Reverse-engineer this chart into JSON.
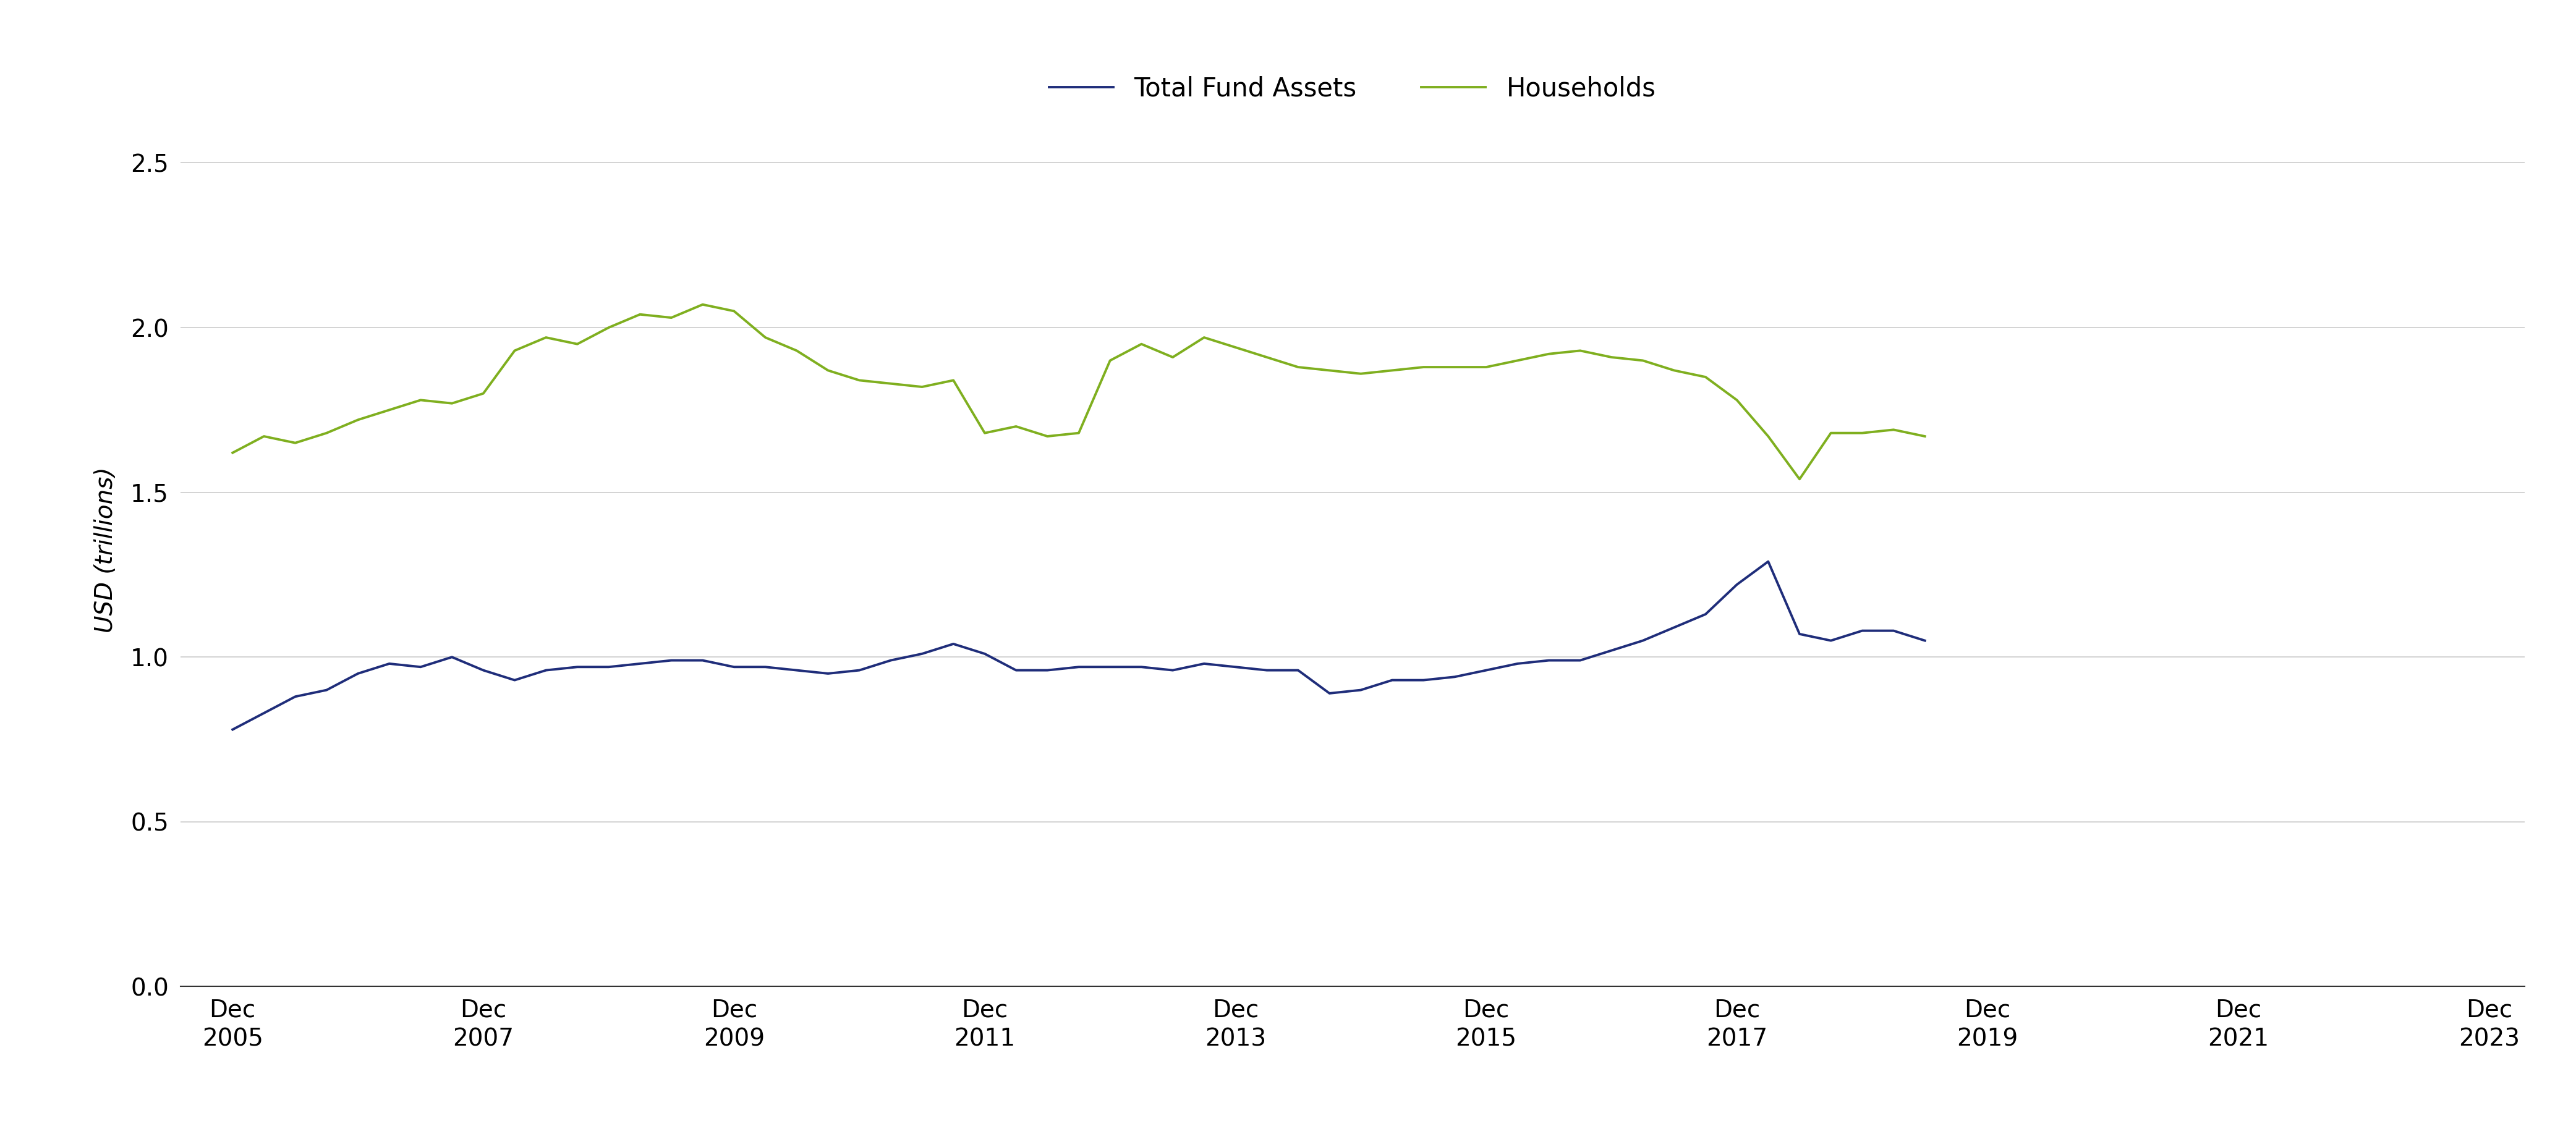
{
  "households": [
    1.62,
    1.67,
    1.65,
    1.68,
    1.72,
    1.75,
    1.78,
    1.77,
    1.8,
    1.93,
    1.97,
    1.95,
    2.0,
    2.04,
    2.03,
    2.07,
    2.05,
    1.97,
    1.93,
    1.87,
    1.84,
    1.83,
    1.82,
    1.84,
    1.68,
    1.7,
    1.67,
    1.68,
    1.9,
    1.95,
    1.91,
    1.97,
    1.94,
    1.91,
    1.88,
    1.87,
    1.86,
    1.87,
    1.88,
    1.88,
    1.88,
    1.9,
    1.92,
    1.93,
    1.91,
    1.9,
    1.87,
    1.85,
    1.78,
    1.67,
    1.54,
    1.68,
    1.68,
    1.69,
    1.67
  ],
  "fund_assets": [
    0.78,
    0.83,
    0.88,
    0.9,
    0.95,
    0.98,
    0.97,
    1.0,
    0.96,
    0.93,
    0.96,
    0.97,
    0.97,
    0.98,
    0.99,
    0.99,
    0.97,
    0.97,
    0.96,
    0.95,
    0.96,
    0.99,
    1.01,
    1.04,
    1.01,
    0.96,
    0.96,
    0.97,
    0.97,
    0.97,
    0.96,
    0.98,
    0.97,
    0.96,
    0.96,
    0.89,
    0.9,
    0.93,
    0.93,
    0.94,
    0.96,
    0.98,
    0.99,
    0.99,
    1.02,
    1.05,
    1.09,
    1.13,
    1.22,
    1.29,
    1.07,
    1.05,
    1.08,
    1.08,
    1.05
  ],
  "x_start_year": 2005.917,
  "yticks": [
    0.0,
    0.5,
    1.0,
    1.5,
    2.0,
    2.5
  ],
  "ytick_labels": [
    "0.0",
    "0.5",
    "1.0",
    "1.5",
    "2.0",
    "2.5"
  ],
  "xtick_labels": [
    "Dec\n2005",
    "Dec\n2007",
    "Dec\n2009",
    "Dec\n2011",
    "Dec\n2013",
    "Dec\n2015",
    "Dec\n2017",
    "Dec\n2019",
    "Dec\n2021",
    "Dec\n2023"
  ],
  "xtick_positions": [
    2005.917,
    2007.917,
    2009.917,
    2011.917,
    2013.917,
    2015.917,
    2017.917,
    2019.917,
    2021.917,
    2023.917
  ],
  "ylabel": "USD (trillions)",
  "ylim_min": 0.0,
  "ylim_max": 2.65,
  "xlim_start": 2005.5,
  "xlim_end": 2024.2,
  "households_color": "#7faf1f",
  "fund_assets_color": "#1f2d7a",
  "households_label": "Households",
  "fund_assets_label": "Total Fund Assets",
  "line_width": 2.8,
  "legend_fontsize": 30,
  "axis_label_fontsize": 28,
  "tick_fontsize": 28,
  "background_color": "#ffffff",
  "grid_color": "#cccccc"
}
